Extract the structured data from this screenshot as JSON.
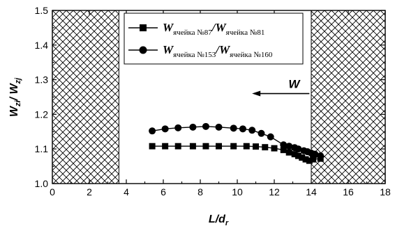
{
  "chart_data": {
    "type": "scatter",
    "xlabel": {
      "main": "L/d",
      "sub": "r"
    },
    "ylabel": {
      "main": "W",
      "sub1": "zi",
      "mid": "/ W",
      "sub2": "zj"
    },
    "xlim": [
      0,
      18
    ],
    "ylim": [
      1.0,
      1.5
    ],
    "xticks": [
      "0",
      "2",
      "4",
      "6",
      "8",
      "10",
      "12",
      "14",
      "16",
      "18"
    ],
    "yticks": [
      "1.0",
      "1.1",
      "1.2",
      "1.3",
      "1.4",
      "1.5"
    ],
    "hatched_regions": [
      [
        0,
        3.6
      ],
      [
        14.0,
        18
      ]
    ],
    "annotation": {
      "label": "W",
      "arrow_from_x": 13.9,
      "arrow_to_x": 10.8,
      "y": 1.26
    },
    "legend": {
      "placement": "top-center"
    },
    "series": [
      {
        "marker": "square",
        "label": {
          "a": "W",
          "a_sub": "ячейка №87",
          "slash": "/",
          "b": "W",
          "b_sub": "ячейка №81"
        },
        "x": [
          5.4,
          6.1,
          6.8,
          7.6,
          8.3,
          9.0,
          9.8,
          10.5,
          11.0,
          11.5,
          12.0,
          12.5,
          12.8,
          13.1,
          13.3,
          13.5,
          13.7,
          13.9,
          14.1,
          14.5
        ],
        "y": [
          1.108,
          1.108,
          1.108,
          1.108,
          1.108,
          1.108,
          1.108,
          1.108,
          1.107,
          1.105,
          1.102,
          1.097,
          1.09,
          1.085,
          1.08,
          1.075,
          1.07,
          1.066,
          1.07,
          1.072
        ]
      },
      {
        "marker": "circle",
        "label": {
          "a": "W",
          "a_sub": "ячейка №153",
          "slash": "/",
          "b": "W",
          "b_sub": "ячейка №160"
        },
        "x": [
          5.4,
          6.1,
          6.8,
          7.6,
          8.3,
          9.0,
          9.8,
          10.3,
          10.8,
          11.3,
          11.8,
          12.5,
          12.8,
          13.1,
          13.3,
          13.6,
          13.8,
          14.0,
          14.2,
          14.5
        ],
        "y": [
          1.152,
          1.158,
          1.161,
          1.163,
          1.165,
          1.163,
          1.16,
          1.158,
          1.154,
          1.145,
          1.135,
          1.112,
          1.108,
          1.104,
          1.1,
          1.095,
          1.092,
          1.088,
          1.085,
          1.08
        ]
      }
    ]
  }
}
